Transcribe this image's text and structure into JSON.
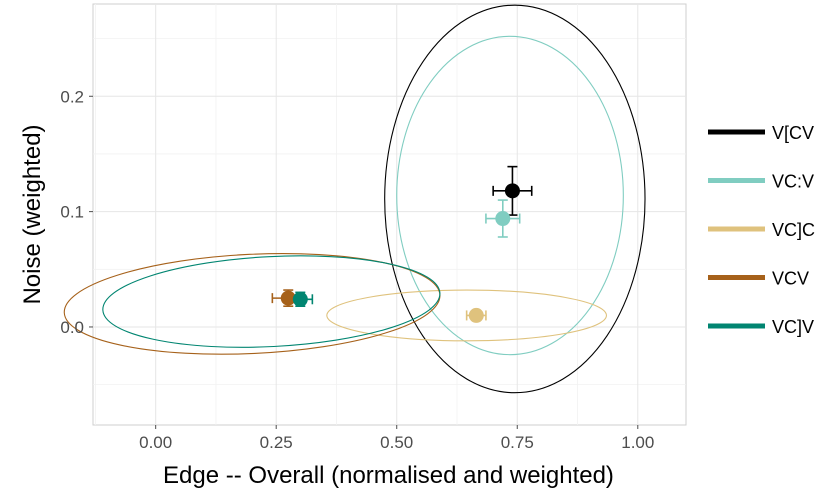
{
  "chart_data": {
    "type": "scatter",
    "xlabel": "Edge -- Overall (normalised and weighted)",
    "ylabel": "Noise (weighted)",
    "xlim": [
      -0.13,
      1.1
    ],
    "ylim": [
      -0.085,
      0.28
    ],
    "x_ticks": [
      {
        "value": 0.0,
        "label": "0.00"
      },
      {
        "value": 0.25,
        "label": "0.25"
      },
      {
        "value": 0.5,
        "label": "0.50"
      },
      {
        "value": 0.75,
        "label": "0.75"
      },
      {
        "value": 1.0,
        "label": "1.00"
      }
    ],
    "y_ticks": [
      {
        "value": 0.0,
        "label": "0.0"
      },
      {
        "value": 0.1,
        "label": "0.1"
      },
      {
        "value": 0.2,
        "label": "0.2"
      }
    ],
    "grid": true,
    "legend_position": "right",
    "series": [
      {
        "name": "V[CV",
        "color": "#000000",
        "x": 0.74,
        "y": 0.118,
        "x_err": 0.04,
        "y_err": 0.021,
        "ellipse": {
          "cx": 0.745,
          "cy": 0.111,
          "rx": 0.27,
          "ry": 0.168
        }
      },
      {
        "name": "VC:V",
        "color": "#80cdc1",
        "x": 0.72,
        "y": 0.094,
        "x_err": 0.035,
        "y_err": 0.016,
        "ellipse": {
          "cx": 0.735,
          "cy": 0.114,
          "rx": 0.235,
          "ry": 0.138
        }
      },
      {
        "name": "VC]C",
        "color": "#dfc27d",
        "x": 0.665,
        "y": 0.01,
        "x_err": 0.02,
        "y_err": 0.004,
        "ellipse": {
          "cx": 0.645,
          "cy": 0.01,
          "rx": 0.29,
          "ry": 0.022
        }
      },
      {
        "name": "VCV",
        "color": "#a6611a",
        "x": 0.275,
        "y": 0.025,
        "x_err": 0.033,
        "y_err": 0.007,
        "ellipse": {
          "cx": 0.2,
          "cy": 0.02,
          "rx": 0.39,
          "ry": 0.043,
          "angle": -2.7
        }
      },
      {
        "name": "VC]V",
        "color": "#018571",
        "x": 0.3,
        "y": 0.024,
        "x_err": 0.025,
        "y_err": 0.006,
        "ellipse": {
          "cx": 0.24,
          "cy": 0.022,
          "rx": 0.35,
          "ry": 0.039,
          "angle": -2.9
        }
      }
    ]
  }
}
